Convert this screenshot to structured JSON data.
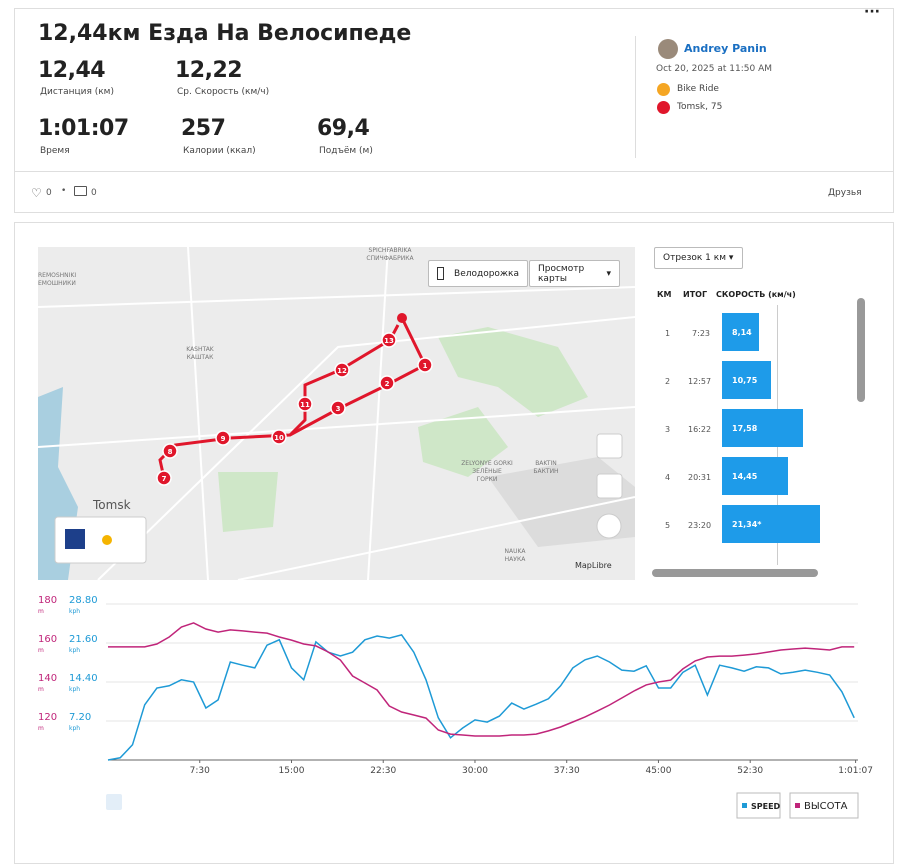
{
  "header": {
    "title": "12,44км Езда На Велосипеде",
    "stats": [
      {
        "value": "12,44",
        "label": "Дистанция (км)"
      },
      {
        "value": "12,22",
        "label": "Ср. Скорость (км/ч)"
      },
      {
        "value": "1:01:07",
        "label": "Время"
      },
      {
        "value": "257",
        "label": "Калории (ккал)"
      },
      {
        "value": "69,4",
        "label": "Подъём (м)"
      }
    ],
    "athlete": "Andrey Panin",
    "date": "Oct 20, 2025 at 11:50 AM",
    "activity_type": "Bike Ride",
    "location": "Tomsk, 75"
  },
  "social": {
    "likes": "0",
    "comments": "0",
    "visibility": "Друзья"
  },
  "map": {
    "bike_lanes_button": "Велодорожка",
    "map_view_button": "Просмотр карты",
    "labels": [
      "SPICHFABRIKA",
      "СПИЧФАБРИКА",
      "REMOSHNIKI",
      "ЕМОШНИКИ",
      "KASHTAK",
      "КАШТАК",
      "ZELYONYE GORKI",
      "ЗЕЛЁНЫЕ",
      "ГОРКИ",
      "BAKTIN",
      "БАКТИН",
      "NAUKA",
      "НАУКА",
      "Tomsk"
    ],
    "markers": [
      "1",
      "2",
      "3",
      "7",
      "8",
      "9",
      "10",
      "11",
      "12",
      "13"
    ],
    "attribution": "MapLibre"
  },
  "splits": {
    "selector": "Отрезок 1 км",
    "headers": [
      "КМ",
      "ИТОГ",
      "СКОРОСТЬ (км/ч)"
    ],
    "km": [
      "1",
      "2",
      "3",
      "4",
      "5"
    ],
    "time": [
      "7:23",
      "12:57",
      "16:22",
      "20:31",
      "23:20"
    ],
    "values": [
      8.14,
      10.75,
      17.58,
      14.45,
      21.34
    ],
    "value_labels": [
      "8,14",
      "10,75",
      "17,58",
      "14,45",
      "21,34*"
    ],
    "color": "#1e9be9"
  },
  "chart_data": {
    "type": "line",
    "x": [
      0,
      1,
      2,
      3,
      4,
      5,
      6,
      7,
      8,
      9,
      10,
      11,
      12,
      13,
      14,
      15,
      16,
      17,
      18,
      19,
      20,
      21,
      22,
      23,
      24,
      25,
      26,
      27,
      28,
      29,
      30,
      31,
      32,
      33,
      34,
      35,
      36,
      37,
      38,
      39,
      40,
      41,
      42,
      43,
      44,
      45,
      46,
      47,
      48,
      49,
      50,
      51,
      52,
      53,
      54,
      55,
      56,
      57,
      58,
      59,
      60,
      61
    ],
    "xlim": [
      0,
      61.1167
    ],
    "xticks": [
      {
        "value": 7.5,
        "label": "7:30"
      },
      {
        "value": 15,
        "label": "15:00"
      },
      {
        "value": 22.5,
        "label": "22:30"
      },
      {
        "value": 30,
        "label": "30:00"
      },
      {
        "value": 37.5,
        "label": "37:30"
      },
      {
        "value": 45,
        "label": "45:00"
      },
      {
        "value": 52.5,
        "label": "52:30"
      },
      {
        "value": 61.1167,
        "label": "1:01:07"
      }
    ],
    "ylim": [
      0,
      28.8
    ],
    "yticks": [
      {
        "value": 7.2,
        "label": "7.20"
      },
      {
        "value": 14.4,
        "label": "14.40"
      },
      {
        "value": 21.6,
        "label": "21.60"
      },
      {
        "value": 28.8,
        "label": "28.80"
      }
    ],
    "y_unit": "kph",
    "y2lim": [
      100,
      180
    ],
    "y2ticks": [
      120,
      140,
      160,
      180
    ],
    "y2_unit": "m",
    "grid": true,
    "series": [
      {
        "name": "SPEED",
        "color": "#1e9ad6",
        "values": [
          0,
          0.4,
          2.8,
          10.2,
          13.3,
          13.7,
          14.8,
          14.4,
          9.6,
          11.1,
          18.1,
          17.5,
          17.0,
          21.2,
          22.2,
          17.0,
          14.8,
          21.8,
          19.9,
          19.2,
          19.9,
          22.2,
          22.9,
          22.5,
          23.1,
          19.9,
          14.8,
          7.8,
          4.1,
          5.9,
          7.4,
          7.0,
          8.1,
          10.5,
          9.4,
          10.3,
          11.3,
          13.7,
          17.0,
          18.5,
          19.2,
          18.1,
          16.6,
          16.4,
          17.4,
          13.3,
          13.3,
          16.2,
          17.5,
          12.0,
          17.5,
          17.0,
          16.4,
          17.2,
          17.0,
          15.9,
          16.2,
          16.6,
          16.2,
          15.7,
          12.6,
          7.8
        ]
      },
      {
        "name": "ВЫСОТА",
        "color": "#c0257a",
        "axis": "y2",
        "values": [
          158.0,
          158.0,
          158.0,
          158.0,
          159.5,
          163.1,
          168.2,
          170.3,
          167.2,
          165.6,
          166.7,
          166.2,
          165.6,
          165.1,
          163.1,
          161.5,
          159.5,
          158.5,
          155.4,
          151.3,
          143.1,
          139.5,
          135.9,
          127.7,
          124.6,
          123.1,
          121.5,
          115.4,
          113.3,
          112.8,
          112.3,
          112.3,
          112.3,
          112.8,
          112.8,
          113.3,
          114.9,
          116.9,
          119.5,
          122.1,
          125.1,
          128.2,
          131.8,
          135.4,
          138.5,
          140.0,
          141.0,
          146.7,
          150.8,
          152.8,
          153.3,
          153.3,
          153.8,
          154.4,
          155.4,
          156.4,
          156.9,
          157.4,
          156.9,
          156.4,
          158.0,
          158.0
        ]
      }
    ]
  }
}
